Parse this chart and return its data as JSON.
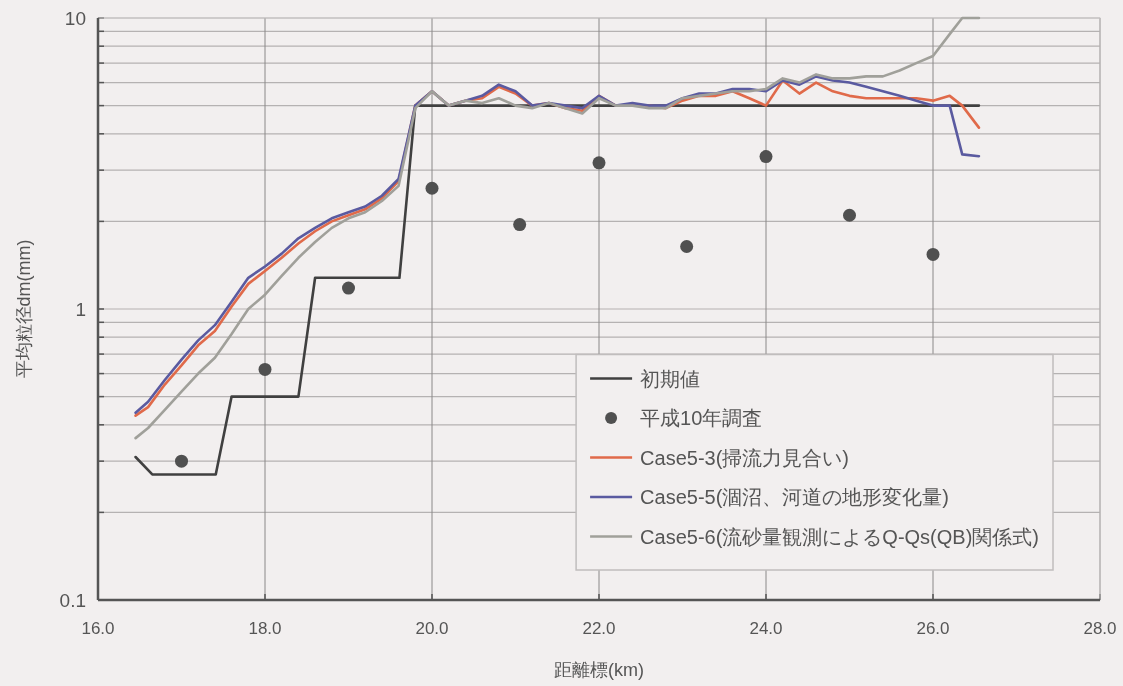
{
  "chart_data": {
    "type": "line",
    "xlabel": "距離標(km)",
    "ylabel": "平均粒径dm(mm)",
    "log": "y",
    "grid": true,
    "legend": "bottom right",
    "xlim": [
      16,
      28
    ],
    "xticks": [
      {
        "value": 16,
        "label": "16.0"
      },
      {
        "value": 18,
        "label": "18.0"
      },
      {
        "value": 20,
        "label": "20.0"
      },
      {
        "value": 22,
        "label": "22.0"
      },
      {
        "value": 24,
        "label": "24.0"
      },
      {
        "value": 26,
        "label": "26.0"
      },
      {
        "value": 28,
        "label": "28.0"
      }
    ],
    "ylim": [
      0.1,
      10
    ],
    "yticks": [
      0.1,
      {
        "value": 0.2,
        "label": null
      },
      {
        "value": 0.3,
        "label": null
      },
      {
        "value": 0.4,
        "label": null
      },
      {
        "value": 0.5,
        "label": null
      },
      {
        "value": 0.6,
        "label": null
      },
      {
        "value": 0.7,
        "label": null
      },
      {
        "value": 0.8,
        "label": null
      },
      {
        "value": 0.9,
        "label": null
      },
      1,
      {
        "value": 2,
        "label": null
      },
      {
        "value": 3,
        "label": null
      },
      {
        "value": 4,
        "label": null
      },
      {
        "value": 5,
        "label": null
      },
      {
        "value": 6,
        "label": null
      },
      {
        "value": 7,
        "label": null
      },
      {
        "value": 8,
        "label": null
      },
      {
        "value": 9,
        "label": null
      },
      10
    ],
    "series": [
      {
        "name": "初期値",
        "type": "line",
        "color": "#404040",
        "x": [
          16.45,
          16.65,
          17.41,
          17.6,
          18.4,
          18.6,
          19.61,
          19.8,
          26.55
        ],
        "values": [
          0.31,
          0.27,
          0.27,
          0.5,
          0.5,
          1.28,
          1.28,
          5.0,
          5.0
        ]
      },
      {
        "name": "平成10年調査",
        "type": "scatter",
        "marker": "circle",
        "color": "#505050",
        "x": [
          17.0,
          18.0,
          19.0,
          20.0,
          21.05,
          22.0,
          23.05,
          24.0,
          25.0,
          26.0
        ],
        "values": [
          0.3,
          0.62,
          1.18,
          2.6,
          1.95,
          3.18,
          1.64,
          3.34,
          2.1,
          1.54
        ]
      },
      {
        "name": "Case5-3(掃流力見合い)",
        "type": "line",
        "color": "#e06a4a",
        "x": [
          16.45,
          16.6,
          16.8,
          17.0,
          17.2,
          17.4,
          17.6,
          17.8,
          18.0,
          18.2,
          18.4,
          18.6,
          18.8,
          19.0,
          19.2,
          19.4,
          19.6,
          19.8,
          20.0,
          20.2,
          20.4,
          20.6,
          20.8,
          21.0,
          21.2,
          21.4,
          21.6,
          21.8,
          22.0,
          22.2,
          22.4,
          22.6,
          22.8,
          23.0,
          23.2,
          23.4,
          23.6,
          23.8,
          24.0,
          24.2,
          24.4,
          24.6,
          24.8,
          25.0,
          25.2,
          25.4,
          25.6,
          25.8,
          26.0,
          26.2,
          26.35,
          26.55
        ],
        "values": [
          0.43,
          0.46,
          0.55,
          0.64,
          0.75,
          0.84,
          1.02,
          1.22,
          1.35,
          1.5,
          1.68,
          1.85,
          2.0,
          2.1,
          2.2,
          2.4,
          2.75,
          5.0,
          5.6,
          5.0,
          5.2,
          5.3,
          5.8,
          5.5,
          5.0,
          5.1,
          4.9,
          4.8,
          5.4,
          5.0,
          5.0,
          5.0,
          4.9,
          5.2,
          5.4,
          5.4,
          5.6,
          5.3,
          5.0,
          6.1,
          5.5,
          6.0,
          5.6,
          5.4,
          5.3,
          5.3,
          5.3,
          5.3,
          5.2,
          5.4,
          5.0,
          4.2
        ]
      },
      {
        "name": "Case5-5(涸沼、河道の地形変化量)",
        "type": "line",
        "color": "#5a5aa0",
        "x": [
          16.45,
          16.6,
          16.8,
          17.0,
          17.2,
          17.4,
          17.6,
          17.8,
          18.0,
          18.2,
          18.4,
          18.6,
          18.8,
          19.0,
          19.2,
          19.4,
          19.6,
          19.8,
          20.0,
          20.2,
          20.4,
          20.6,
          20.8,
          21.0,
          21.2,
          21.4,
          21.6,
          21.8,
          22.0,
          22.2,
          22.4,
          22.6,
          22.8,
          23.0,
          23.2,
          23.4,
          23.6,
          23.8,
          24.0,
          24.2,
          24.4,
          24.6,
          24.8,
          25.0,
          25.2,
          25.4,
          25.6,
          25.8,
          26.0,
          26.2,
          26.35,
          26.55
        ],
        "values": [
          0.44,
          0.48,
          0.57,
          0.67,
          0.78,
          0.88,
          1.06,
          1.28,
          1.4,
          1.55,
          1.75,
          1.9,
          2.05,
          2.15,
          2.25,
          2.45,
          2.8,
          5.0,
          5.6,
          5.0,
          5.2,
          5.4,
          5.9,
          5.6,
          5.0,
          5.1,
          5.0,
          4.9,
          5.4,
          5.0,
          5.1,
          5.0,
          5.0,
          5.3,
          5.5,
          5.5,
          5.7,
          5.7,
          5.6,
          6.1,
          5.9,
          6.3,
          6.1,
          6.0,
          5.8,
          5.6,
          5.4,
          5.2,
          5.0,
          5.0,
          3.4,
          3.35
        ]
      },
      {
        "name": "Case5-6(流砂量観測によるQ-Qs(QB)関係式)",
        "type": "line",
        "color": "#a0a09a",
        "x": [
          16.45,
          16.6,
          16.8,
          17.0,
          17.2,
          17.4,
          17.6,
          17.8,
          18.0,
          18.2,
          18.4,
          18.6,
          18.8,
          19.0,
          19.2,
          19.4,
          19.6,
          19.8,
          20.0,
          20.2,
          20.4,
          20.6,
          20.8,
          21.0,
          21.2,
          21.4,
          21.6,
          21.8,
          22.0,
          22.2,
          22.4,
          22.6,
          22.8,
          23.0,
          23.2,
          23.4,
          23.6,
          23.8,
          24.0,
          24.2,
          24.4,
          24.6,
          24.8,
          25.0,
          25.2,
          25.4,
          25.6,
          25.8,
          26.0,
          26.2,
          26.35,
          26.55
        ],
        "values": [
          0.36,
          0.39,
          0.45,
          0.52,
          0.6,
          0.68,
          0.82,
          1.0,
          1.12,
          1.3,
          1.5,
          1.7,
          1.9,
          2.05,
          2.15,
          2.35,
          2.65,
          4.9,
          5.6,
          5.0,
          5.2,
          5.1,
          5.3,
          5.0,
          4.9,
          5.1,
          4.9,
          4.7,
          5.3,
          5.0,
          5.0,
          4.9,
          4.9,
          5.3,
          5.4,
          5.5,
          5.6,
          5.6,
          5.7,
          6.2,
          6.0,
          6.4,
          6.2,
          6.2,
          6.3,
          6.3,
          6.6,
          7.0,
          7.4,
          8.8,
          10,
          10
        ]
      }
    ]
  }
}
